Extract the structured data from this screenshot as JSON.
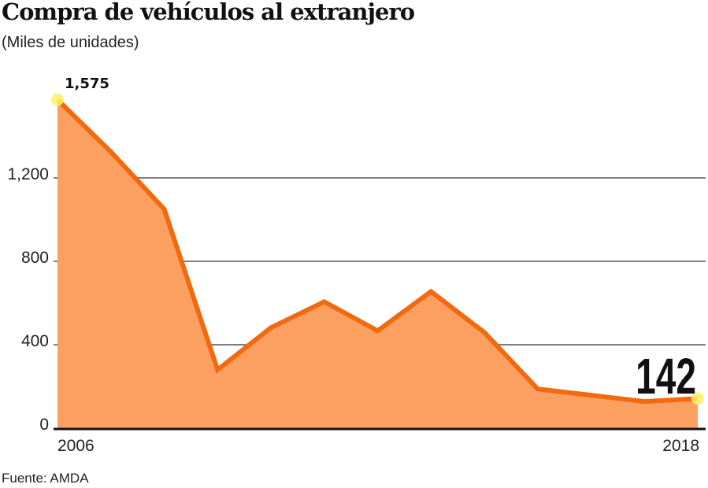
{
  "header": {
    "title": "Compra de vehículos al extranjero",
    "subtitle": "(Miles de unidades)"
  },
  "footer": {
    "source": "Fuente: AMDA"
  },
  "colors": {
    "line": "#F26A10",
    "fill": "#FCA062",
    "marker": "#FFF16A",
    "grid": "#555555",
    "axis": "#111111"
  },
  "annotations": {
    "start_label": "1,575",
    "end_label": "142"
  },
  "axis": {
    "y_ticks": [
      {
        "value": 0,
        "label": "0"
      },
      {
        "value": 400,
        "label": "400"
      },
      {
        "value": 800,
        "label": "800"
      },
      {
        "value": 1200,
        "label": "1,200"
      }
    ],
    "x_labels": [
      {
        "year": 2006,
        "label": "2006"
      },
      {
        "year": 2018,
        "label": "2018"
      }
    ]
  },
  "chart_data": {
    "type": "area",
    "title": "Compra de vehículos al extranjero",
    "subtitle": "(Miles de unidades)",
    "xlabel": "",
    "ylabel": "Miles de unidades",
    "x": [
      2006,
      2007,
      2008,
      2009,
      2010,
      2011,
      2012,
      2013,
      2014,
      2015,
      2016,
      2017,
      2018
    ],
    "series": [
      {
        "name": "Compra de vehículos al extranjero",
        "values": [
          1575,
          1325,
          1050,
          280,
          482,
          606,
          467,
          655,
          459,
          188,
          158,
          128,
          142
        ]
      }
    ],
    "ylim": [
      0,
      1600
    ],
    "y_ticks": [
      0,
      400,
      800,
      1200
    ],
    "x_tick_labels": [
      "2006",
      "2018"
    ],
    "grid": "horizontal",
    "annotations": [
      {
        "x": 2006,
        "value": 1575,
        "text": "1,575"
      },
      {
        "x": 2018,
        "value": 142,
        "text": "142"
      }
    ],
    "source": "Fuente: AMDA"
  }
}
